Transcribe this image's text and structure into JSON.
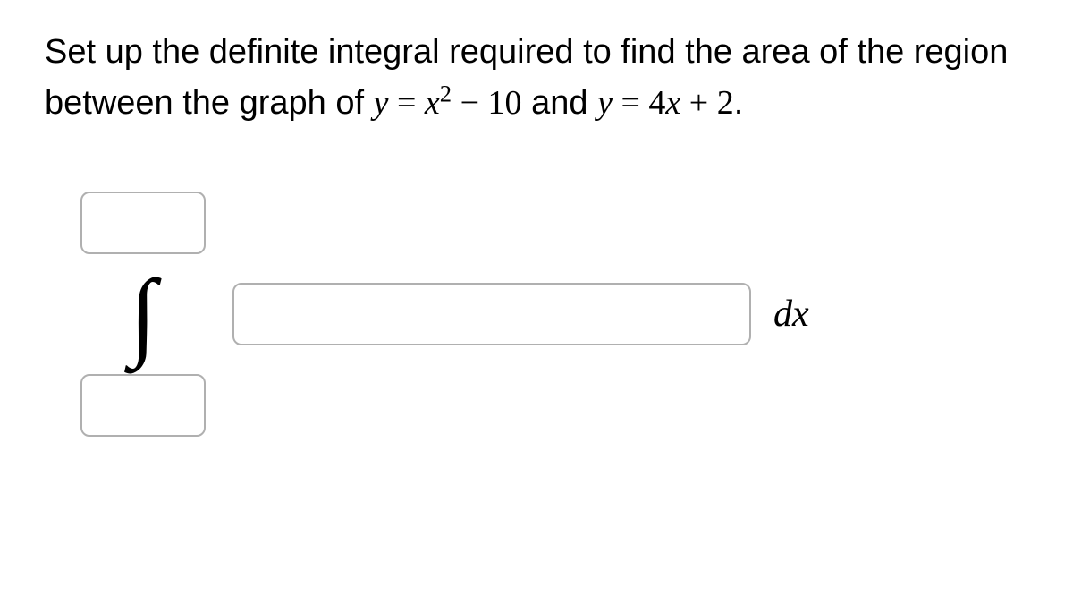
{
  "question": {
    "text_part1": "Set up the definite integral required to find the area of the region between the graph of ",
    "eq1_lhs_var": "y",
    "eq1_eq": " = ",
    "eq1_rhs_base": "x",
    "eq1_rhs_exp": "2",
    "eq1_minus": " − ",
    "eq1_const": "10",
    "text_part2": " and ",
    "eq2_lhs_var": "y",
    "eq2_eq": " = ",
    "eq2_coef": "4",
    "eq2_var": "x",
    "eq2_plus": " + ",
    "eq2_const": "2",
    "text_period": "."
  },
  "integral": {
    "symbol": "∫",
    "differential": "dx"
  },
  "styling": {
    "body_font": "Arial, Helvetica, sans-serif",
    "math_font": "Times New Roman, Times, serif",
    "question_fontsize": 38,
    "integral_fontsize": 110,
    "dx_fontsize": 42,
    "input_border_color": "#b0b0b0",
    "input_border_radius": 10,
    "limit_box_width": 140,
    "limit_box_height": 70,
    "integrand_box_width": 580,
    "integrand_box_height": 70,
    "background_color": "#ffffff",
    "text_color": "#000000"
  }
}
